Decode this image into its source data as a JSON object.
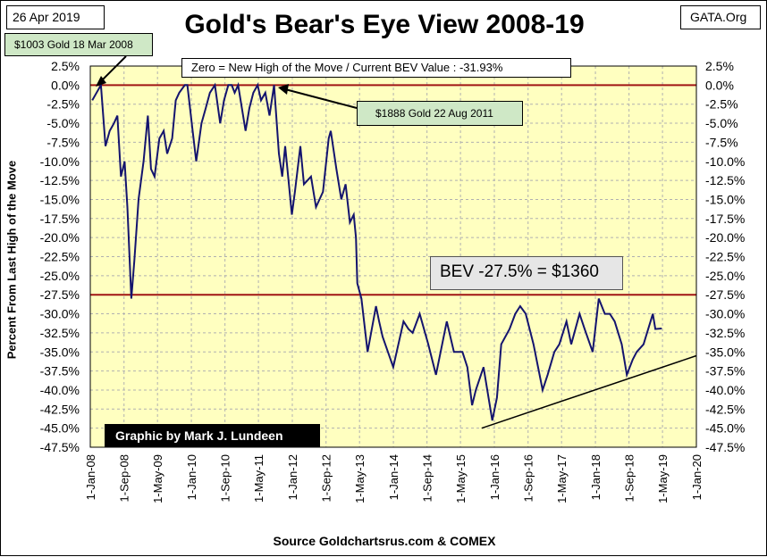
{
  "header": {
    "date": "26 Apr 2019",
    "site": "GATA.Org",
    "title": "Gold's Bear's Eye View 2008-19"
  },
  "annotations": {
    "left_note": "$1003 Gold 18 Mar 2008",
    "right_note": "$1888  Gold 22 Aug 2011",
    "top_note": "Zero = New High of the Move / Current  BEV Value : -31.93%",
    "bev_note": "BEV -27.5% = $1360",
    "credit": "Graphic by Mark J. Lundeen",
    "source": "Source Goldchartsrus.com & COMEX"
  },
  "colors": {
    "plot_bg": "#ffffc0",
    "line": "#14146e",
    "ref_line": "#a01414",
    "grid": "#b0b0b0",
    "trend": "#000000"
  },
  "chart_data": {
    "type": "line",
    "title": "Gold's Bear's Eye View 2008-19",
    "ylabel": "Percent  From Last High of the Move",
    "xlabel": "",
    "ylim": [
      -47.5,
      2.5
    ],
    "xlim": [
      "2008-01-01",
      "2020-01-01"
    ],
    "y_ticks": [
      2.5,
      0,
      -2.5,
      -5,
      -7.5,
      -10,
      -12.5,
      -15,
      -17.5,
      -20,
      -22.5,
      -25,
      -27.5,
      -30,
      -32.5,
      -35,
      -37.5,
      -40,
      -42.5,
      -45,
      -47.5
    ],
    "y_tick_labels": [
      "2.5%",
      "0.0%",
      "-2.5%",
      "-5.0%",
      "-7.5%",
      "-10.0%",
      "-12.5%",
      "-15.0%",
      "-17.5%",
      "-20.0%",
      "-22.5%",
      "-25.0%",
      "-27.5%",
      "-30.0%",
      "-32.5%",
      "-35.0%",
      "-37.5%",
      "-40.0%",
      "-42.5%",
      "-45.0%",
      "-47.5%"
    ],
    "x_ticks": [
      "2008-01-01",
      "2008-09-01",
      "2009-05-01",
      "2010-01-01",
      "2010-09-01",
      "2011-05-01",
      "2012-01-01",
      "2012-09-01",
      "2013-05-01",
      "2014-01-01",
      "2014-09-01",
      "2015-05-01",
      "2016-01-01",
      "2016-09-01",
      "2017-05-01",
      "2018-01-01",
      "2018-09-01",
      "2019-05-01",
      "2020-01-01"
    ],
    "x_tick_labels": [
      "1-Jan-08",
      "1-Sep-08",
      "1-May-09",
      "1-Jan-10",
      "1-Sep-10",
      "1-May-11",
      "1-Jan-12",
      "1-Sep-12",
      "1-May-13",
      "1-Jan-14",
      "1-Sep-14",
      "1-May-15",
      "1-Jan-16",
      "1-Sep-16",
      "1-May-17",
      "1-Jan-18",
      "1-Sep-18",
      "1-May-19",
      "1-Jan-20"
    ],
    "reference_lines": [
      0,
      -27.5
    ],
    "grid": true,
    "series": [
      {
        "x": [
          "2008-01-15",
          "2008-03-18",
          "2008-04-20",
          "2008-05-20",
          "2008-06-20",
          "2008-07-15",
          "2008-08-10",
          "2008-09-05",
          "2008-09-25",
          "2008-10-24",
          "2008-11-15",
          "2008-12-15",
          "2009-01-20",
          "2009-02-20",
          "2009-03-15",
          "2009-04-10",
          "2009-05-15",
          "2009-06-15",
          "2009-07-10",
          "2009-08-15",
          "2009-09-10",
          "2009-10-05",
          "2009-11-15",
          "2009-12-03",
          "2010-01-10",
          "2010-02-05",
          "2010-03-15",
          "2010-04-15",
          "2010-05-15",
          "2010-06-20",
          "2010-07-28",
          "2010-08-25",
          "2010-09-25",
          "2010-10-20",
          "2010-11-10",
          "2010-12-05",
          "2011-01-28",
          "2011-02-25",
          "2011-03-25",
          "2011-04-25",
          "2011-05-20",
          "2011-06-20",
          "2011-07-20",
          "2011-08-22",
          "2011-09-26",
          "2011-10-20",
          "2011-11-10",
          "2011-12-29",
          "2012-01-20",
          "2012-02-28",
          "2012-03-25",
          "2012-05-15",
          "2012-06-20",
          "2012-08-10",
          "2012-09-20",
          "2012-10-05",
          "2012-11-15",
          "2012-12-20",
          "2013-01-20",
          "2013-02-20",
          "2013-03-20",
          "2013-04-05",
          "2013-04-15",
          "2013-05-15",
          "2013-06-28",
          "2013-08-28",
          "2013-09-20",
          "2013-10-15",
          "2013-12-31",
          "2014-03-15",
          "2014-04-20",
          "2014-05-20",
          "2014-07-10",
          "2014-09-10",
          "2014-11-05",
          "2015-01-22",
          "2015-03-15",
          "2015-05-15",
          "2015-06-20",
          "2015-07-24",
          "2015-08-20",
          "2015-10-15",
          "2015-12-17",
          "2016-01-20",
          "2016-02-20",
          "2016-04-20",
          "2016-05-31",
          "2016-07-06",
          "2016-08-15",
          "2016-10-10",
          "2016-12-15",
          "2017-01-20",
          "2017-03-10",
          "2017-04-15",
          "2017-06-06",
          "2017-07-10",
          "2017-09-08",
          "2017-10-15",
          "2017-12-12",
          "2018-01-25",
          "2018-03-10",
          "2018-04-15",
          "2018-05-20",
          "2018-07-10",
          "2018-08-16",
          "2018-09-28",
          "2018-10-26",
          "2018-12-15",
          "2019-02-20",
          "2019-03-10",
          "2019-04-26"
        ],
        "values": [
          -2,
          0,
          -8,
          -6,
          -5,
          -4,
          -12,
          -10,
          -16,
          -28,
          -23,
          -15,
          -10,
          -4,
          -11,
          -12,
          -7,
          -6,
          -9,
          -7,
          -2,
          -1,
          0,
          0,
          -6,
          -10,
          -5,
          -3,
          -1,
          0,
          -5,
          -2,
          0,
          0,
          -1,
          0,
          -6,
          -3,
          -1,
          0,
          -2,
          -1,
          -4,
          0,
          -9,
          -12,
          -8,
          -17,
          -14,
          -8,
          -13,
          -12,
          -16,
          -14,
          -7,
          -6,
          -11,
          -15,
          -13,
          -18,
          -17,
          -20,
          -26,
          -28,
          -35,
          -29,
          -31,
          -33,
          -37,
          -31,
          -32,
          -32.5,
          -30,
          -34,
          -38,
          -31,
          -35,
          -35,
          -37,
          -42,
          -40,
          -37,
          -44,
          -41,
          -34,
          -32,
          -30,
          -29,
          -30,
          -34,
          -40,
          -38,
          -35,
          -34,
          -31,
          -34,
          -30,
          -32,
          -35,
          -28,
          -30,
          -30,
          -31,
          -34,
          -38,
          -36,
          -35,
          -34,
          -30,
          -32,
          -31.93
        ]
      }
    ],
    "trend_line": {
      "x": [
        "2015-10-01",
        "2020-01-01"
      ],
      "y": [
        -45,
        -35.5
      ]
    }
  }
}
